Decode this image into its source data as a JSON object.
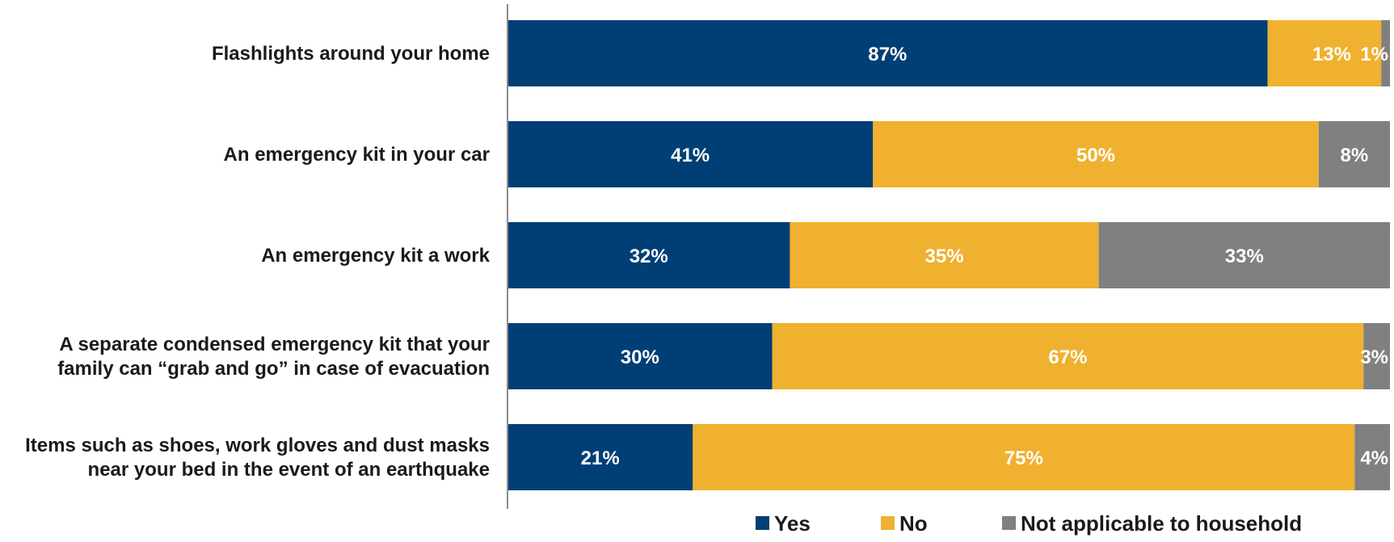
{
  "chart_data": {
    "type": "bar",
    "orientation": "horizontal",
    "stacked": true,
    "percent_stacked": true,
    "title": "",
    "xlabel": "",
    "ylabel": "",
    "xlim": [
      0,
      100
    ],
    "grid": false,
    "legend_position": "bottom",
    "categories": [
      [
        "Flashlights around your home"
      ],
      [
        "An emergency kit in your car"
      ],
      [
        "An emergency kit a work"
      ],
      [
        "A separate condensed emergency kit that your",
        "family can “grab and go” in case of evacuation"
      ],
      [
        "Items such as shoes, work gloves and dust masks",
        "near your bed in the event of an earthquake"
      ]
    ],
    "series": [
      {
        "name": "Yes",
        "color": "#003f75",
        "values": [
          87,
          41,
          32,
          30,
          21
        ],
        "labels": [
          "87%",
          "41%",
          "32%",
          "30%",
          "21%"
        ]
      },
      {
        "name": "No",
        "color": "#efb12f",
        "values": [
          13,
          50,
          35,
          67,
          75
        ],
        "labels": [
          "13%",
          "50%",
          "35%",
          "67%",
          "75%"
        ]
      },
      {
        "name": "Not applicable to household",
        "color": "#808080",
        "values": [
          1,
          8,
          33,
          3,
          4
        ],
        "labels": [
          "1%",
          "8%",
          "33%",
          "3%",
          "4%"
        ]
      }
    ]
  }
}
